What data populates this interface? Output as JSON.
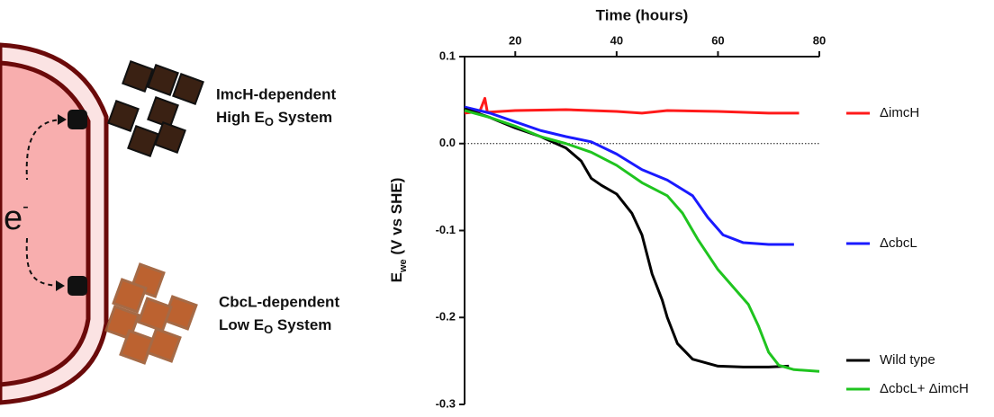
{
  "diagram": {
    "high_label": [
      "ImcH-dependent",
      "High E",
      "O",
      " System"
    ],
    "low_label": [
      "CbcL-dependent",
      "Low E",
      "O",
      " System"
    ],
    "electron": [
      "e",
      "-"
    ]
  },
  "chart_data": {
    "type": "line",
    "xlabel": "Time (hours)",
    "ylabel": [
      "E",
      "we",
      " (V vs SHE)"
    ],
    "xlim": [
      10,
      80
    ],
    "xticks": [
      20,
      40,
      60,
      80
    ],
    "ylim": [
      -0.3,
      0.1
    ],
    "yticks": [
      0.1,
      {
        "value": 0,
        "label": "0.0"
      },
      -0.1,
      -0.2,
      -0.3
    ],
    "zero_line": true,
    "series": [
      {
        "name": "ΔimcH",
        "color": "#ff1a1a",
        "x": [
          10,
          13,
          14,
          14.5,
          20,
          30,
          40,
          45,
          50,
          60,
          70,
          76
        ],
        "values": [
          0.035,
          0.037,
          0.052,
          0.036,
          0.038,
          0.039,
          0.037,
          0.035,
          0.038,
          0.037,
          0.035,
          0.035
        ]
      },
      {
        "name": "ΔcbcL",
        "color": "#1a1aff",
        "x": [
          10,
          15,
          20,
          25,
          30,
          35,
          40,
          45,
          50,
          55,
          58,
          61,
          65,
          70,
          75
        ],
        "values": [
          0.042,
          0.035,
          0.025,
          0.015,
          0.008,
          0.002,
          -0.012,
          -0.03,
          -0.042,
          -0.06,
          -0.085,
          -0.105,
          -0.114,
          -0.116,
          -0.116
        ]
      },
      {
        "name": "Wild type",
        "color": "#000000",
        "x": [
          10,
          15,
          20,
          25,
          30,
          33,
          35,
          37,
          40,
          43,
          45,
          47,
          49,
          50,
          52,
          55,
          60,
          65,
          70,
          74
        ],
        "values": [
          0.04,
          0.03,
          0.018,
          0.008,
          -0.005,
          -0.02,
          -0.04,
          -0.048,
          -0.058,
          -0.08,
          -0.105,
          -0.15,
          -0.18,
          -0.2,
          -0.23,
          -0.248,
          -0.256,
          -0.257,
          -0.257,
          -0.256
        ]
      },
      {
        "name": "ΔcbcL+ ΔimcH",
        "color": "#1fc41f",
        "x": [
          10,
          15,
          20,
          25,
          30,
          35,
          40,
          45,
          50,
          53,
          56,
          60,
          63,
          66,
          68,
          70,
          72,
          75,
          80
        ],
        "values": [
          0.038,
          0.03,
          0.02,
          0.008,
          0,
          -0.01,
          -0.025,
          -0.045,
          -0.06,
          -0.08,
          -0.11,
          -0.145,
          -0.165,
          -0.185,
          -0.21,
          -0.24,
          -0.255,
          -0.26,
          -0.262
        ]
      }
    ]
  }
}
